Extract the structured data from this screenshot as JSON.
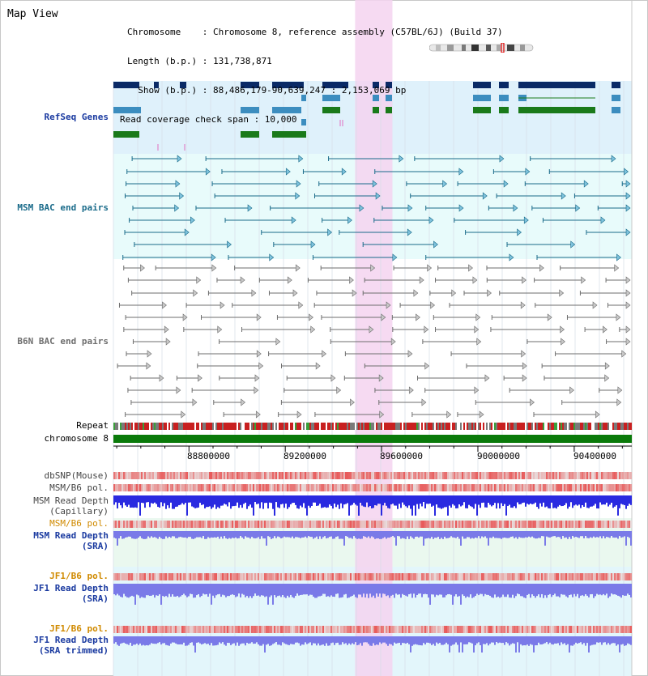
{
  "title": "Map View",
  "info": {
    "chromosome": "Chromosome    : Chromosome 8, reference assembly (C57BL/6J) (Build 37)",
    "length": "Length (b.p.) : 131,738,871",
    "show": "  Show (b.p.) : 88,486,179-90,639,247 : 2,153,069 bp",
    "coverage": "Read coverage check span : 10,000"
  },
  "colors": {
    "refseq_bg": "#dff1fb",
    "bac_bg": "#e8fbfb",
    "highlight": "#f5d4f0",
    "gene_dark": "#0a2a66",
    "gene_mid": "#3c8dbf",
    "gene_green": "#1a7a1a",
    "msm_bac": "#1a6b8a",
    "b6n_bac": "#6e6e6e",
    "repeat_red": "#c82020",
    "chr_green": "#0a7a0a",
    "snp_red": "#e85050",
    "depth_blue": "#2a2ae0",
    "sra_blue": "#7a7ae8",
    "label_blue": "#1a3aa0",
    "label_orange": "#d08a00"
  },
  "tracks": {
    "refseq": "RefSeq Genes",
    "msm_bac": "MSM BAC end pairs",
    "b6n_bac": "B6N BAC end pairs",
    "repeat": "Repeat",
    "chromosome": "chromosome 8",
    "dbsnp": "dbSNP(Mouse)",
    "msm_b6_pol": "MSM/B6 pol.",
    "msm_depth_cap_1": "MSM Read Depth",
    "msm_depth_cap_2": "(Capillary)",
    "msm_b6_pol_2": "MSM/B6 pol.",
    "msm_depth_sra_1": "MSM Read Depth",
    "msm_depth_sra_2": "(SRA)",
    "jf1_b6_pol": "JF1/B6 pol.",
    "jf1_depth_sra_1": "JF1 Read Depth",
    "jf1_depth_sra_2": "(SRA)",
    "jf1_b6_pol_2": "JF1/B6 pol.",
    "jf1_depth_trim_1": "JF1 Read Depth",
    "jf1_depth_trim_2": "(SRA trimmed)"
  },
  "axis": {
    "ticks": [
      "88800000",
      "89200000",
      "89600000",
      "90000000",
      "90400000"
    ],
    "tick_values": [
      88800000,
      89200000,
      89600000,
      90000000,
      90400000
    ],
    "range": [
      88486179,
      90639247
    ],
    "highlight_range": [
      89490000,
      89645000
    ]
  }
}
